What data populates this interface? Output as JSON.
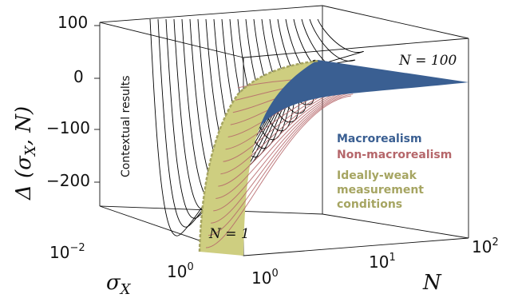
{
  "chart_data": {
    "type": "surface",
    "title": "",
    "axes": {
      "z": {
        "label": "Δ (σ_X, N)",
        "label_parts": {
          "main": "Δ (σ",
          "sub": "X",
          "end": ", N)"
        },
        "ticks": [
          "100",
          "0",
          "−100",
          "−200"
        ],
        "range": [
          -300,
          100
        ]
      },
      "sigma": {
        "label_parts": {
          "main": "σ",
          "sub": "X"
        },
        "scale": "log",
        "ticks": [
          {
            "base": "10",
            "exp": "−2"
          },
          {
            "base": "10",
            "exp": "0"
          }
        ]
      },
      "N": {
        "label": "N",
        "scale": "log",
        "ticks": [
          {
            "base": "10",
            "exp": "0"
          },
          {
            "base": "10",
            "exp": "1"
          },
          {
            "base": "10",
            "exp": "2"
          }
        ],
        "range": [
          1,
          100
        ]
      }
    },
    "regions": [
      {
        "name": "Macrorealism",
        "color": "#3a5f92"
      },
      {
        "name": "Non-macrorealism",
        "color": "#b5666a"
      },
      {
        "name": "Ideally-weak measurement conditions",
        "color": "#c7c77a"
      }
    ],
    "annotations": {
      "contextual": "Contextual results",
      "n_max": "N = 100",
      "n_min": "N = 1"
    },
    "grid": false,
    "legend_position": "right"
  },
  "legend": {
    "macro": "Macrorealism",
    "nonmacro": "Non-macrorealism",
    "weak_line1": "Ideally-weak",
    "weak_line2": "measurement",
    "weak_line3": "conditions"
  },
  "colors": {
    "macro": "#3a5f92",
    "nonmacro": "#b5666a",
    "weak": "#a6a562",
    "weak_fill": "#cece80"
  }
}
